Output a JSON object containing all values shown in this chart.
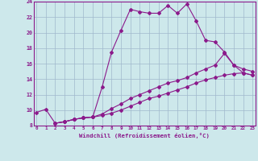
{
  "xlabel": "Windchill (Refroidissement éolien,°C)",
  "bg_color": "#cde8eb",
  "line_color": "#8b1a8b",
  "grid_color": "#a0b8cc",
  "xmin": 0,
  "xmax": 23,
  "ymin": 8,
  "ymax": 24,
  "yticks": [
    8,
    10,
    12,
    14,
    16,
    18,
    20,
    22,
    24
  ],
  "xticks": [
    0,
    1,
    2,
    3,
    4,
    5,
    6,
    7,
    8,
    9,
    10,
    11,
    12,
    13,
    14,
    15,
    16,
    17,
    18,
    19,
    20,
    21,
    22,
    23
  ],
  "line1_x": [
    0,
    1,
    2,
    3,
    4,
    5,
    6,
    7,
    8,
    9,
    10,
    11,
    12,
    13,
    14,
    15,
    16,
    17,
    18,
    19,
    20,
    21,
    22,
    23
  ],
  "line1_y": [
    9.7,
    10.1,
    8.3,
    8.5,
    8.8,
    9.0,
    9.1,
    13.0,
    17.5,
    20.3,
    23.0,
    22.7,
    22.5,
    22.5,
    23.5,
    22.5,
    23.7,
    21.5,
    19.0,
    18.8,
    17.5,
    15.8,
    14.8,
    14.5
  ],
  "line2_x": [
    2,
    3,
    4,
    5,
    6,
    7,
    8,
    9,
    10,
    11,
    12,
    13,
    14,
    15,
    16,
    17,
    18,
    19,
    20,
    21,
    22,
    23
  ],
  "line2_y": [
    8.3,
    8.5,
    8.8,
    9.0,
    9.1,
    9.5,
    10.2,
    10.8,
    11.5,
    12.0,
    12.5,
    13.0,
    13.5,
    13.8,
    14.2,
    14.8,
    15.3,
    15.8,
    17.3,
    15.8,
    15.3,
    15.0
  ],
  "line3_x": [
    2,
    3,
    4,
    5,
    6,
    7,
    8,
    9,
    10,
    11,
    12,
    13,
    14,
    15,
    16,
    17,
    18,
    19,
    20,
    21,
    22,
    23
  ],
  "line3_y": [
    8.3,
    8.5,
    8.8,
    9.0,
    9.1,
    9.3,
    9.6,
    10.0,
    10.5,
    11.0,
    11.5,
    11.8,
    12.2,
    12.6,
    13.0,
    13.5,
    13.9,
    14.2,
    14.5,
    14.7,
    14.8,
    14.5
  ],
  "marker": "D",
  "marker_size": 2,
  "linewidth": 0.8
}
